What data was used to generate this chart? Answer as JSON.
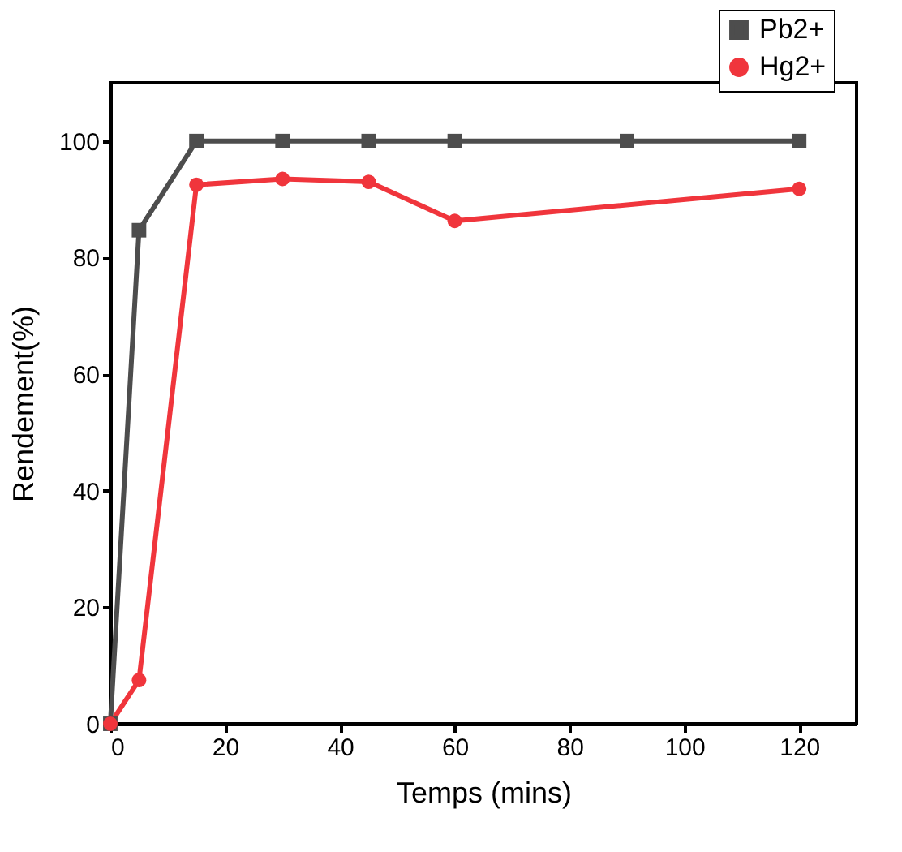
{
  "chart_data": {
    "type": "line",
    "xlabel": "Temps (mins)",
    "ylabel": "Rendement(%)",
    "xlim": [
      0,
      130
    ],
    "xticks": [
      0,
      20,
      40,
      60,
      80,
      100,
      120
    ],
    "ylim": [
      0,
      110
    ],
    "yticks": [
      0,
      20,
      40,
      60,
      80,
      100
    ],
    "grid": false,
    "legend": "top right",
    "line_style": "solid",
    "series": [
      {
        "name": "Pb2+",
        "color": "#4d4d4d",
        "marker": "square",
        "x": [
          0,
          5,
          15,
          30,
          45,
          60,
          90,
          120
        ],
        "values": [
          0,
          84.7,
          100,
          100,
          100,
          100,
          100,
          100
        ]
      },
      {
        "name": "Hg2+",
        "color": "#f0353c",
        "marker": "circle",
        "x": [
          0,
          5,
          15,
          30,
          45,
          60,
          120
        ],
        "values": [
          0,
          7.5,
          92.5,
          93.5,
          93,
          86.3,
          91.8
        ]
      }
    ]
  }
}
